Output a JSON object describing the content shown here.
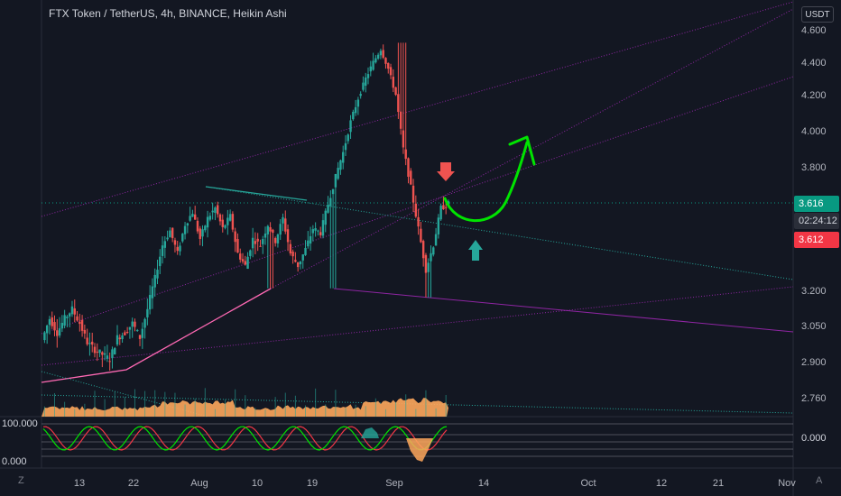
{
  "header": {
    "title": "FTX Token / TetherUS, 4h, BINANCE, Heikin Ashi",
    "currency": "USDT"
  },
  "colors": {
    "background": "#131722",
    "up": "#26a69a",
    "down": "#ef5350",
    "bar_current": "#089981",
    "timer_bg": "#2a2e39",
    "price_bg_red": "#f23645",
    "price_bg_green": "#089981",
    "arrow_green": "#00e400",
    "trendline_pink": "#ff69b4",
    "trendline_purple": "#9c27b0",
    "trendline_teal": "#26a69a",
    "volume": "#ffa75c",
    "volume_teal": "#26a69a"
  },
  "price_axis": {
    "ticks": [
      "4.600",
      "4.400",
      "4.200",
      "4.000",
      "3.800",
      "3.200",
      "3.050",
      "2.900",
      "2.760"
    ]
  },
  "price_labels": {
    "last_green": "3.616",
    "countdown": "02:24:12",
    "last_red": "3.612"
  },
  "indicator": {
    "left_top": "100.000",
    "left_bottom": "0.000",
    "right_mid": "0.000"
  },
  "corner": {
    "left": "Z",
    "right": "A"
  },
  "chart_data": {
    "type": "candlestick",
    "title": "FTX Token / TetherUS, 4h, BINANCE, Heikin Ashi",
    "x_ticks": [
      "13",
      "22",
      "Aug",
      "10",
      "19",
      "Sep",
      "14",
      "Oct",
      "12",
      "21",
      "Nov"
    ],
    "y_ticks": [
      4.6,
      4.4,
      4.2,
      4.0,
      3.8,
      3.2,
      3.05,
      2.9,
      2.76
    ],
    "ylim": [
      2.7,
      4.65
    ],
    "last_price": 3.612,
    "price_path": [
      [
        0,
        2.99
      ],
      [
        6,
        3.08
      ],
      [
        12,
        3.02
      ],
      [
        18,
        3.08
      ],
      [
        24,
        3.12
      ],
      [
        30,
        3.06
      ],
      [
        36,
        2.98
      ],
      [
        42,
        2.95
      ],
      [
        48,
        2.93
      ],
      [
        54,
        2.91
      ],
      [
        60,
        3.0
      ],
      [
        66,
        3.02
      ],
      [
        72,
        3.06
      ],
      [
        78,
        3.0
      ],
      [
        84,
        3.12
      ],
      [
        90,
        3.26
      ],
      [
        96,
        3.42
      ],
      [
        102,
        3.49
      ],
      [
        108,
        3.38
      ],
      [
        114,
        3.52
      ],
      [
        120,
        3.58
      ],
      [
        126,
        3.45
      ],
      [
        132,
        3.55
      ],
      [
        138,
        3.6
      ],
      [
        144,
        3.5
      ],
      [
        150,
        3.56
      ],
      [
        156,
        3.38
      ],
      [
        162,
        3.32
      ],
      [
        168,
        3.45
      ],
      [
        174,
        3.42
      ],
      [
        180,
        3.52
      ],
      [
        186,
        3.44
      ],
      [
        192,
        3.55
      ],
      [
        198,
        3.38
      ],
      [
        204,
        3.32
      ],
      [
        210,
        3.4
      ],
      [
        216,
        3.5
      ],
      [
        222,
        3.48
      ],
      [
        228,
        3.62
      ],
      [
        234,
        3.75
      ],
      [
        240,
        3.88
      ],
      [
        246,
        4.05
      ],
      [
        252,
        4.18
      ],
      [
        258,
        4.3
      ],
      [
        264,
        4.4
      ],
      [
        270,
        4.48
      ],
      [
        276,
        4.36
      ],
      [
        282,
        4.2
      ],
      [
        288,
        3.9
      ],
      [
        294,
        3.7
      ],
      [
        300,
        3.5
      ],
      [
        306,
        3.3
      ],
      [
        312,
        3.42
      ],
      [
        318,
        3.6
      ],
      [
        324,
        3.62
      ]
    ],
    "annotations": [
      {
        "type": "arrow",
        "direction": "down",
        "color": "red",
        "near_price": 3.76
      },
      {
        "type": "arrow",
        "direction": "up",
        "color": "teal",
        "near_price": 3.42
      },
      {
        "type": "curve",
        "shape": "dip-then-rise",
        "color": "green",
        "from_price": 3.64,
        "to_price": 3.98
      }
    ]
  }
}
